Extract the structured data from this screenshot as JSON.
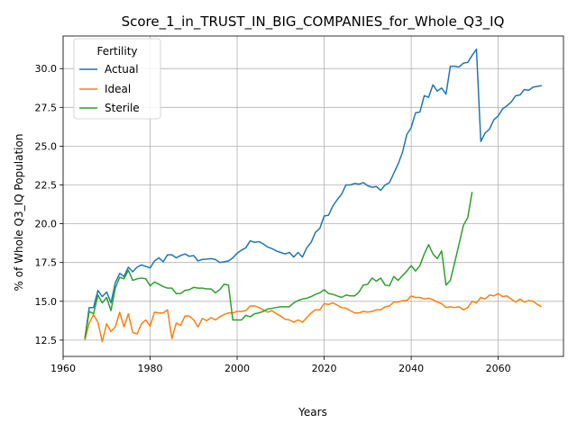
{
  "chart_data": {
    "type": "line",
    "title": "Score_1_in_TRUST_IN_BIG_COMPANIES_for_Whole_Q3_IQ",
    "xlabel": "Years",
    "ylabel": "% of Whole Q3_IQ Population",
    "xlim": [
      1960,
      2075
    ],
    "ylim": [
      11.45,
      32.1
    ],
    "xticks": [
      1960,
      1980,
      2000,
      2020,
      2040,
      2060
    ],
    "yticks": [
      12.5,
      15.0,
      17.5,
      20.0,
      22.5,
      25.0,
      27.5,
      30.0
    ],
    "ytick_labels": [
      "12.5",
      "15.0",
      "17.5",
      "20.0",
      "22.5",
      "25.0",
      "27.5",
      "30.0"
    ],
    "grid": true,
    "legend": {
      "title": "Fertility",
      "position": "top-left"
    },
    "series": [
      {
        "name": "Actual",
        "color": "#1f77b4",
        "points": [
          [
            1965,
            12.6
          ],
          [
            1966,
            14.6
          ],
          [
            1967,
            14.6
          ],
          [
            1968,
            15.7
          ],
          [
            1969,
            15.3
          ],
          [
            1970,
            15.6
          ],
          [
            1971,
            14.9
          ],
          [
            1972,
            16.2
          ],
          [
            1973,
            16.8
          ],
          [
            1974,
            16.6
          ],
          [
            1975,
            17.2
          ],
          [
            1976,
            16.9
          ],
          [
            1977,
            17.2
          ],
          [
            1978,
            17.35
          ],
          [
            1979,
            17.25
          ],
          [
            1980,
            17.15
          ],
          [
            1981,
            17.6
          ],
          [
            1982,
            17.8
          ],
          [
            1983,
            17.55
          ],
          [
            1984,
            18.0
          ],
          [
            1985,
            18.0
          ],
          [
            1986,
            17.8
          ],
          [
            1987,
            17.95
          ],
          [
            1988,
            18.05
          ],
          [
            1989,
            17.9
          ],
          [
            1990,
            17.95
          ],
          [
            1991,
            17.6
          ],
          [
            1992,
            17.7
          ],
          [
            1993,
            17.72
          ],
          [
            1994,
            17.75
          ],
          [
            1995,
            17.7
          ],
          [
            1996,
            17.5
          ],
          [
            1997,
            17.55
          ],
          [
            1998,
            17.6
          ],
          [
            1999,
            17.8
          ],
          [
            2000,
            18.1
          ],
          [
            2001,
            18.3
          ],
          [
            2002,
            18.45
          ],
          [
            2003,
            18.9
          ],
          [
            2004,
            18.8
          ],
          [
            2005,
            18.85
          ],
          [
            2006,
            18.7
          ],
          [
            2007,
            18.5
          ],
          [
            2008,
            18.4
          ],
          [
            2009,
            18.25
          ],
          [
            2010,
            18.15
          ],
          [
            2011,
            18.05
          ],
          [
            2012,
            18.15
          ],
          [
            2013,
            17.85
          ],
          [
            2014,
            18.15
          ],
          [
            2015,
            17.85
          ],
          [
            2016,
            18.45
          ],
          [
            2017,
            18.8
          ],
          [
            2018,
            19.45
          ],
          [
            2019,
            19.7
          ],
          [
            2020,
            20.5
          ],
          [
            2021,
            20.55
          ],
          [
            2022,
            21.15
          ],
          [
            2023,
            21.55
          ],
          [
            2024,
            21.9
          ],
          [
            2025,
            22.5
          ],
          [
            2026,
            22.5
          ],
          [
            2027,
            22.6
          ],
          [
            2028,
            22.55
          ],
          [
            2029,
            22.65
          ],
          [
            2030,
            22.45
          ],
          [
            2031,
            22.35
          ],
          [
            2032,
            22.4
          ],
          [
            2033,
            22.15
          ],
          [
            2034,
            22.5
          ],
          [
            2035,
            22.65
          ],
          [
            2036,
            23.25
          ],
          [
            2037,
            23.85
          ],
          [
            2038,
            24.6
          ],
          [
            2039,
            25.75
          ],
          [
            2040,
            26.2
          ],
          [
            2041,
            27.15
          ],
          [
            2042,
            27.2
          ],
          [
            2043,
            28.25
          ],
          [
            2044,
            28.15
          ],
          [
            2045,
            28.95
          ],
          [
            2046,
            28.55
          ],
          [
            2047,
            28.75
          ],
          [
            2048,
            28.35
          ],
          [
            2049,
            30.15
          ],
          [
            2050,
            30.15
          ],
          [
            2051,
            30.1
          ],
          [
            2052,
            30.35
          ],
          [
            2053,
            30.4
          ],
          [
            2054,
            30.85
          ],
          [
            2055,
            31.25
          ],
          [
            2056,
            25.3
          ],
          [
            2057,
            25.85
          ],
          [
            2058,
            26.1
          ],
          [
            2059,
            26.7
          ],
          [
            2060,
            26.95
          ],
          [
            2061,
            27.4
          ],
          [
            2062,
            27.6
          ],
          [
            2063,
            27.85
          ],
          [
            2064,
            28.25
          ],
          [
            2065,
            28.3
          ],
          [
            2066,
            28.65
          ],
          [
            2067,
            28.6
          ],
          [
            2068,
            28.8
          ],
          [
            2069,
            28.85
          ],
          [
            2070,
            28.9
          ]
        ]
      },
      {
        "name": "Ideal",
        "color": "#ff7f0e",
        "points": [
          [
            1965,
            12.5
          ],
          [
            1966,
            13.6
          ],
          [
            1967,
            14.15
          ],
          [
            1968,
            13.65
          ],
          [
            1969,
            12.4
          ],
          [
            1970,
            13.55
          ],
          [
            1971,
            13.05
          ],
          [
            1972,
            13.35
          ],
          [
            1973,
            14.3
          ],
          [
            1974,
            13.35
          ],
          [
            1975,
            14.2
          ],
          [
            1976,
            13.0
          ],
          [
            1977,
            12.9
          ],
          [
            1978,
            13.55
          ],
          [
            1979,
            13.8
          ],
          [
            1980,
            13.4
          ],
          [
            1981,
            14.3
          ],
          [
            1982,
            14.25
          ],
          [
            1983,
            14.25
          ],
          [
            1984,
            14.45
          ],
          [
            1985,
            12.6
          ],
          [
            1986,
            13.6
          ],
          [
            1987,
            13.45
          ],
          [
            1988,
            14.05
          ],
          [
            1989,
            14.05
          ],
          [
            1990,
            13.8
          ],
          [
            1991,
            13.35
          ],
          [
            1992,
            13.9
          ],
          [
            1993,
            13.75
          ],
          [
            1994,
            13.95
          ],
          [
            1995,
            13.8
          ],
          [
            1996,
            14.0
          ],
          [
            1997,
            14.15
          ],
          [
            1998,
            14.25
          ],
          [
            1999,
            14.25
          ],
          [
            2000,
            14.35
          ],
          [
            2001,
            14.35
          ],
          [
            2002,
            14.4
          ],
          [
            2003,
            14.7
          ],
          [
            2004,
            14.7
          ],
          [
            2005,
            14.6
          ],
          [
            2006,
            14.45
          ],
          [
            2007,
            14.3
          ],
          [
            2008,
            14.4
          ],
          [
            2009,
            14.2
          ],
          [
            2010,
            14.05
          ],
          [
            2011,
            13.85
          ],
          [
            2012,
            13.8
          ],
          [
            2013,
            13.65
          ],
          [
            2014,
            13.8
          ],
          [
            2015,
            13.65
          ],
          [
            2016,
            13.95
          ],
          [
            2017,
            14.25
          ],
          [
            2018,
            14.45
          ],
          [
            2019,
            14.45
          ],
          [
            2020,
            14.85
          ],
          [
            2021,
            14.8
          ],
          [
            2022,
            14.9
          ],
          [
            2023,
            14.75
          ],
          [
            2024,
            14.6
          ],
          [
            2025,
            14.55
          ],
          [
            2026,
            14.4
          ],
          [
            2027,
            14.25
          ],
          [
            2028,
            14.25
          ],
          [
            2029,
            14.35
          ],
          [
            2030,
            14.3
          ],
          [
            2031,
            14.35
          ],
          [
            2032,
            14.45
          ],
          [
            2033,
            14.45
          ],
          [
            2034,
            14.65
          ],
          [
            2035,
            14.7
          ],
          [
            2036,
            14.95
          ],
          [
            2037,
            14.95
          ],
          [
            2038,
            15.05
          ],
          [
            2039,
            15.05
          ],
          [
            2040,
            15.35
          ],
          [
            2041,
            15.25
          ],
          [
            2042,
            15.25
          ],
          [
            2043,
            15.15
          ],
          [
            2044,
            15.2
          ],
          [
            2045,
            15.1
          ],
          [
            2046,
            14.95
          ],
          [
            2047,
            14.85
          ],
          [
            2048,
            14.6
          ],
          [
            2049,
            14.65
          ],
          [
            2050,
            14.6
          ],
          [
            2051,
            14.65
          ],
          [
            2052,
            14.45
          ],
          [
            2053,
            14.6
          ],
          [
            2054,
            15.0
          ],
          [
            2055,
            14.9
          ],
          [
            2056,
            15.25
          ],
          [
            2057,
            15.15
          ],
          [
            2058,
            15.4
          ],
          [
            2059,
            15.35
          ],
          [
            2060,
            15.5
          ],
          [
            2061,
            15.3
          ],
          [
            2062,
            15.35
          ],
          [
            2063,
            15.15
          ],
          [
            2064,
            14.95
          ],
          [
            2065,
            15.15
          ],
          [
            2066,
            14.95
          ],
          [
            2067,
            15.05
          ],
          [
            2068,
            15.0
          ],
          [
            2069,
            14.8
          ],
          [
            2070,
            14.65
          ]
        ]
      },
      {
        "name": "Sterile",
        "color": "#2ca02c",
        "points": [
          [
            1965,
            12.6
          ],
          [
            1966,
            14.35
          ],
          [
            1967,
            14.2
          ],
          [
            1968,
            15.4
          ],
          [
            1969,
            14.9
          ],
          [
            1970,
            15.25
          ],
          [
            1971,
            14.4
          ],
          [
            1972,
            15.85
          ],
          [
            1973,
            16.55
          ],
          [
            1974,
            16.45
          ],
          [
            1975,
            17.0
          ],
          [
            1976,
            16.35
          ],
          [
            1977,
            16.45
          ],
          [
            1978,
            16.5
          ],
          [
            1979,
            16.45
          ],
          [
            1980,
            16.0
          ],
          [
            1981,
            16.25
          ],
          [
            1982,
            16.1
          ],
          [
            1983,
            15.95
          ],
          [
            1984,
            15.85
          ],
          [
            1985,
            15.85
          ],
          [
            1986,
            15.5
          ],
          [
            1987,
            15.5
          ],
          [
            1988,
            15.7
          ],
          [
            1989,
            15.75
          ],
          [
            1990,
            15.9
          ],
          [
            1991,
            15.85
          ],
          [
            1992,
            15.85
          ],
          [
            1993,
            15.8
          ],
          [
            1994,
            15.8
          ],
          [
            1995,
            15.55
          ],
          [
            1996,
            15.75
          ],
          [
            1997,
            16.1
          ],
          [
            1998,
            16.05
          ],
          [
            1999,
            13.8
          ],
          [
            2000,
            13.8
          ],
          [
            2001,
            13.8
          ],
          [
            2002,
            14.1
          ],
          [
            2003,
            14.0
          ],
          [
            2004,
            14.2
          ],
          [
            2005,
            14.25
          ],
          [
            2006,
            14.35
          ],
          [
            2007,
            14.5
          ],
          [
            2008,
            14.55
          ],
          [
            2009,
            14.6
          ],
          [
            2010,
            14.65
          ],
          [
            2011,
            14.65
          ],
          [
            2012,
            14.65
          ],
          [
            2013,
            14.9
          ],
          [
            2014,
            15.05
          ],
          [
            2015,
            15.15
          ],
          [
            2016,
            15.2
          ],
          [
            2017,
            15.3
          ],
          [
            2018,
            15.45
          ],
          [
            2019,
            15.55
          ],
          [
            2020,
            15.75
          ],
          [
            2021,
            15.5
          ],
          [
            2022,
            15.45
          ],
          [
            2023,
            15.35
          ],
          [
            2024,
            15.25
          ],
          [
            2025,
            15.4
          ],
          [
            2026,
            15.35
          ],
          [
            2027,
            15.35
          ],
          [
            2028,
            15.6
          ],
          [
            2029,
            16.05
          ],
          [
            2030,
            16.1
          ],
          [
            2031,
            16.5
          ],
          [
            2032,
            16.3
          ],
          [
            2033,
            16.5
          ],
          [
            2034,
            16.05
          ],
          [
            2035,
            16.0
          ],
          [
            2036,
            16.6
          ],
          [
            2037,
            16.35
          ],
          [
            2038,
            16.65
          ],
          [
            2039,
            16.95
          ],
          [
            2040,
            17.3
          ],
          [
            2041,
            16.95
          ],
          [
            2042,
            17.3
          ],
          [
            2043,
            18.05
          ],
          [
            2044,
            18.65
          ],
          [
            2045,
            18.05
          ],
          [
            2046,
            17.75
          ],
          [
            2047,
            18.25
          ],
          [
            2048,
            16.05
          ],
          [
            2049,
            16.35
          ],
          [
            2050,
            17.5
          ],
          [
            2051,
            18.7
          ],
          [
            2052,
            19.9
          ],
          [
            2053,
            20.4
          ],
          [
            2054,
            22.05
          ]
        ]
      }
    ]
  }
}
